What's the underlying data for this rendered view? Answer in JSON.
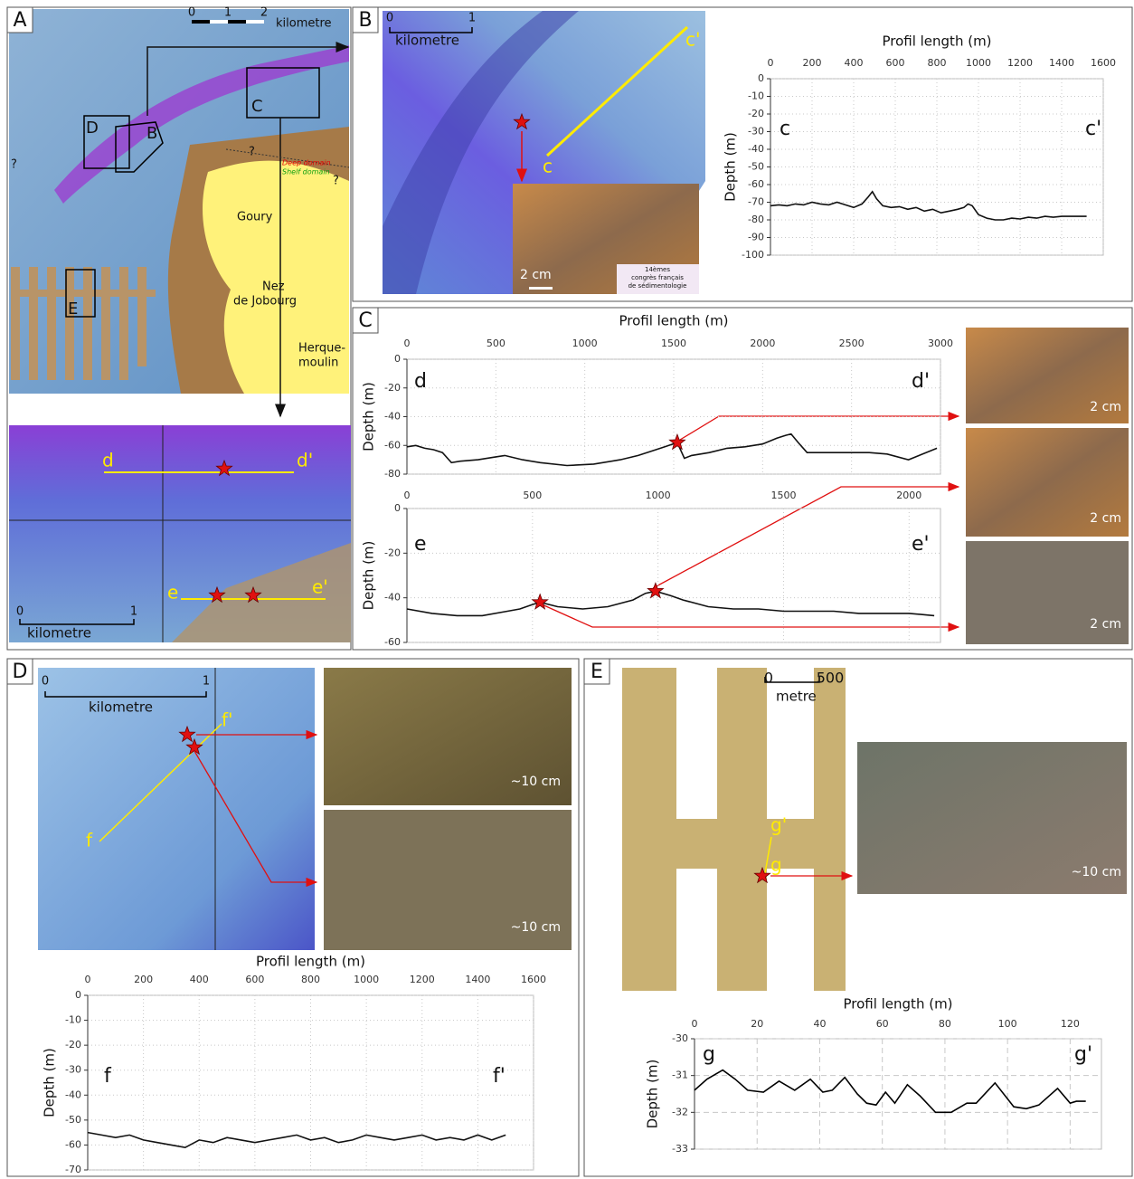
{
  "panels": [
    "A",
    "B",
    "C",
    "D",
    "E"
  ],
  "map_A": {
    "boxes": [
      "C",
      "D",
      "B",
      "E"
    ],
    "places": [
      [
        "Goury"
      ],
      [
        "Nez",
        "de Jobourg"
      ],
      [
        "Herque-",
        "moulin"
      ]
    ],
    "domains": [
      "Deep domain",
      "Shelf domain"
    ],
    "unknown": [
      "?",
      "?",
      "?"
    ],
    "scale": {
      "unit": "kilometre",
      "ticks": [
        "0",
        "1",
        "2"
      ]
    }
  },
  "map_A_inset": {
    "profiles": [
      "d",
      "d'",
      "e",
      "e'"
    ],
    "scale": {
      "unit": "kilometre",
      "ticks": [
        "0",
        "1"
      ]
    }
  },
  "map_B": {
    "profiles": [
      "c",
      "c'"
    ],
    "scale": {
      "unit": "kilometre",
      "ticks": [
        "0",
        "1"
      ]
    },
    "photo_scale": "2 cm",
    "logo": [
      "14èmes",
      "congrès français",
      "de sédimentologie"
    ]
  },
  "photos_C": [
    "2 cm",
    "2 cm",
    "2 cm"
  ],
  "map_D": {
    "profiles": [
      "f",
      "f'"
    ],
    "scale": {
      "unit": "kilometre",
      "ticks": [
        "0",
        "1"
      ]
    },
    "photo_scales": [
      "~10 cm",
      "~10 cm"
    ]
  },
  "map_E": {
    "profiles": [
      "g",
      "g'"
    ],
    "scale": {
      "unit": "metre",
      "ticks": [
        "0",
        "500"
      ]
    },
    "photo_scale": "~10 cm"
  },
  "chart_data": [
    {
      "type": "line",
      "xlabel": "Profil length (m)",
      "ylabel": "Depth (m)",
      "annotations": [
        "c",
        "c'"
      ],
      "color": "#111111",
      "grid": "dotted",
      "xlim": [
        0,
        1600
      ],
      "xticks": [
        0,
        200,
        400,
        600,
        800,
        1000,
        1200,
        1400,
        1600
      ],
      "ylim": [
        -100,
        0
      ],
      "yticks": [
        0,
        -10,
        -20,
        -30,
        -40,
        -50,
        -60,
        -70,
        -80,
        -90,
        -100
      ],
      "x": [
        0,
        40,
        80,
        120,
        160,
        200,
        240,
        280,
        320,
        360,
        400,
        440,
        470,
        490,
        510,
        540,
        580,
        620,
        660,
        700,
        740,
        780,
        820,
        860,
        900,
        930,
        950,
        970,
        1000,
        1040,
        1080,
        1120,
        1160,
        1200,
        1240,
        1280,
        1320,
        1360,
        1400,
        1440,
        1480,
        1520
      ],
      "values": [
        -72,
        -71.5,
        -72,
        -71,
        -71.5,
        -70,
        -71,
        -71.5,
        -70,
        -71.5,
        -73,
        -71,
        -67,
        -64,
        -68,
        -72,
        -73,
        -72.5,
        -74,
        -73,
        -75,
        -74,
        -76,
        -75,
        -74,
        -73,
        -71,
        -72,
        -77,
        -79,
        -80,
        -80,
        -79,
        -79.5,
        -78.5,
        -79,
        -78,
        -78.5,
        -78,
        -78,
        -78,
        -78
      ]
    },
    {
      "type": "line",
      "xlabel": "Profil length (m)",
      "ylabel": "Depth (m)",
      "annotations": [
        "d",
        "d'"
      ],
      "color": "#111111",
      "grid": "dotted",
      "xlim": [
        0,
        3000
      ],
      "xticks": [
        0,
        500,
        1000,
        1500,
        2000,
        2500,
        3000
      ],
      "ylim": [
        -80,
        0
      ],
      "yticks": [
        0,
        -20,
        -40,
        -60,
        -80
      ],
      "x": [
        0,
        50,
        100,
        150,
        200,
        250,
        300,
        400,
        500,
        550,
        650,
        750,
        900,
        1050,
        1200,
        1300,
        1400,
        1450,
        1520,
        1560,
        1600,
        1700,
        1800,
        1900,
        2000,
        2080,
        2130,
        2160,
        2200,
        2250,
        2400,
        2600,
        2700,
        2820,
        2900,
        2980
      ],
      "values": [
        -61,
        -60,
        -62,
        -63,
        -65,
        -72,
        -71,
        -70,
        -68,
        -67,
        -70,
        -72,
        -74,
        -73,
        -70,
        -67,
        -63,
        -61,
        -58,
        -69,
        -67,
        -65,
        -62,
        -61,
        -59,
        -55,
        -53,
        -52,
        -58,
        -65,
        -65,
        -65,
        -66,
        -70,
        -66,
        -62
      ],
      "markers": [
        {
          "x": 1520,
          "y": -58
        }
      ]
    },
    {
      "type": "line",
      "ylabel": "Depth (m)",
      "annotations": [
        "e",
        "e'"
      ],
      "color": "#111111",
      "grid": "dotted",
      "xlim": [
        0,
        2125
      ],
      "xticks": [
        0,
        500,
        1000,
        1500,
        2000
      ],
      "ylim": [
        -60,
        0
      ],
      "yticks": [
        0,
        -20,
        -40,
        -60
      ],
      "x": [
        0,
        100,
        200,
        300,
        400,
        450,
        500,
        530,
        600,
        700,
        800,
        900,
        950,
        990,
        1050,
        1100,
        1200,
        1300,
        1400,
        1500,
        1600,
        1700,
        1800,
        1900,
        2000,
        2100
      ],
      "values": [
        -45,
        -47,
        -48,
        -48,
        -46,
        -45,
        -43,
        -42,
        -44,
        -45,
        -44,
        -41,
        -38,
        -37,
        -39,
        -41,
        -44,
        -45,
        -45,
        -46,
        -46,
        -46,
        -47,
        -47,
        -47,
        -48
      ],
      "markers": [
        {
          "x": 530,
          "y": -42
        },
        {
          "x": 990,
          "y": -37
        }
      ]
    },
    {
      "type": "line",
      "xlabel": "Profil length (m)",
      "ylabel": "Depth (m)",
      "annotations": [
        "f",
        "f'"
      ],
      "color": "#111111",
      "grid": "dotted",
      "xlim": [
        0,
        1600
      ],
      "xticks": [
        0,
        200,
        400,
        600,
        800,
        1000,
        1200,
        1400,
        1600
      ],
      "ylim": [
        -70,
        0
      ],
      "yticks": [
        0,
        -10,
        -20,
        -30,
        -40,
        -50,
        -60,
        -70
      ],
      "x": [
        0,
        50,
        100,
        150,
        200,
        250,
        300,
        350,
        400,
        450,
        500,
        550,
        600,
        650,
        700,
        750,
        800,
        850,
        900,
        950,
        1000,
        1050,
        1100,
        1150,
        1200,
        1250,
        1300,
        1350,
        1400,
        1450,
        1500
      ],
      "values": [
        -55,
        -56,
        -57,
        -56,
        -58,
        -59,
        -60,
        -61,
        -58,
        -59,
        -57,
        -58,
        -59,
        -58,
        -57,
        -56,
        -58,
        -57,
        -59,
        -58,
        -56,
        -57,
        -58,
        -57,
        -56,
        -58,
        -57,
        -58,
        -56,
        -58,
        -56
      ]
    },
    {
      "type": "line",
      "xlabel": "Profil length (m)",
      "ylabel": "Depth (m)",
      "annotations": [
        "g",
        "g'"
      ],
      "color": "#000000",
      "grid": "dashed",
      "xlim": [
        0,
        130
      ],
      "xticks": [
        0,
        20,
        40,
        60,
        80,
        100,
        120
      ],
      "ylim": [
        -33,
        -30
      ],
      "yticks": [
        -30,
        -31,
        -32,
        -33
      ],
      "x": [
        0,
        4,
        9,
        13,
        17,
        22,
        27,
        32,
        37,
        41,
        44,
        48,
        52,
        55,
        58,
        61,
        64,
        68,
        72,
        77,
        82,
        87,
        90,
        96,
        102,
        106,
        110,
        116,
        120,
        122,
        125
      ],
      "values": [
        -31.4,
        -31.1,
        -30.85,
        -31.1,
        -31.4,
        -31.45,
        -31.15,
        -31.4,
        -31.1,
        -31.45,
        -31.4,
        -31.05,
        -31.5,
        -31.75,
        -31.8,
        -31.45,
        -31.75,
        -31.25,
        -31.55,
        -32.0,
        -32.0,
        -31.75,
        -31.75,
        -31.2,
        -31.85,
        -31.9,
        -31.8,
        -31.35,
        -31.75,
        -31.7,
        -31.7
      ]
    }
  ]
}
